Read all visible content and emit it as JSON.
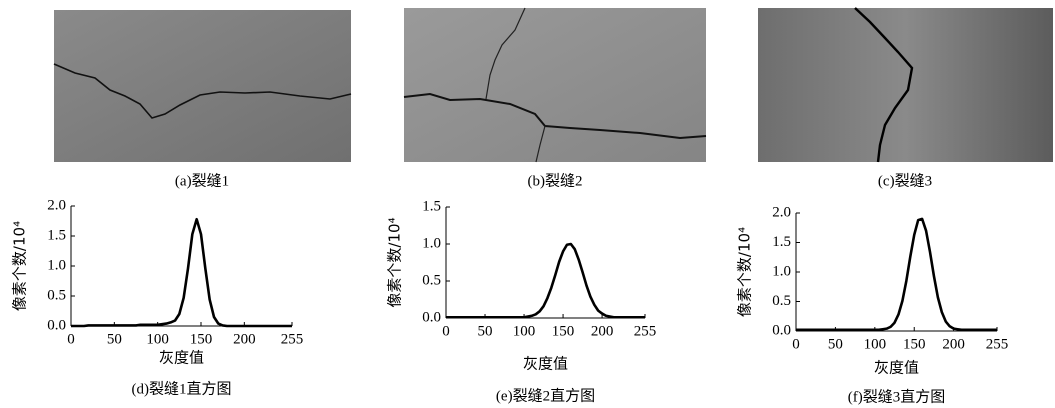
{
  "images": [
    {
      "caption": "(a)裂缝1"
    },
    {
      "caption": "(b)裂缝2"
    },
    {
      "caption": "(c)裂缝3"
    }
  ],
  "chart_data": [
    {
      "type": "line",
      "title": "(d)裂缝1直方图",
      "x_label": "灰度值",
      "y_label": "像素个数/10⁴",
      "color": "#000000",
      "x": [
        0,
        5,
        10,
        15,
        20,
        25,
        30,
        35,
        40,
        45,
        50,
        55,
        60,
        65,
        70,
        75,
        80,
        85,
        90,
        95,
        100,
        105,
        110,
        115,
        120,
        125,
        130,
        135,
        140,
        145,
        150,
        155,
        160,
        165,
        170,
        175,
        180,
        185,
        190,
        195,
        200,
        205,
        210,
        215,
        220,
        225,
        230,
        235,
        240,
        245,
        250,
        255
      ],
      "values": [
        0,
        0,
        0,
        0,
        0.01,
        0.01,
        0.01,
        0.01,
        0.01,
        0.01,
        0.01,
        0.01,
        0.01,
        0.01,
        0.01,
        0.01,
        0.02,
        0.02,
        0.02,
        0.02,
        0.02,
        0.03,
        0.04,
        0.06,
        0.09,
        0.2,
        0.47,
        0.96,
        1.53,
        1.78,
        1.53,
        0.96,
        0.44,
        0.15,
        0.04,
        0.01,
        0,
        0,
        0,
        0,
        0,
        0,
        0,
        0,
        0,
        0,
        0,
        0,
        0,
        0,
        0,
        0
      ],
      "xlim": [
        0,
        255
      ],
      "xticks": [
        0,
        50,
        100,
        150,
        200,
        255
      ],
      "ylim": [
        0,
        2
      ],
      "yticks": [
        {
          "value": 0,
          "label": "0.0"
        },
        0.5,
        {
          "value": 1,
          "label": "1.0"
        },
        1.5,
        {
          "value": 2,
          "label": "2.0"
        }
      ]
    },
    {
      "type": "line",
      "title": "(e)裂缝2直方图",
      "x_label": "灰度值",
      "y_label": "像素个数/10⁴",
      "color": "#000000",
      "x": [
        0,
        5,
        10,
        15,
        20,
        25,
        30,
        35,
        40,
        45,
        50,
        55,
        60,
        65,
        70,
        75,
        80,
        85,
        90,
        95,
        100,
        105,
        110,
        115,
        120,
        125,
        130,
        135,
        140,
        145,
        150,
        155,
        160,
        165,
        170,
        175,
        180,
        185,
        190,
        195,
        200,
        205,
        210,
        215,
        220,
        225,
        230,
        235,
        240,
        245,
        250,
        255
      ],
      "values": [
        0.01,
        0.01,
        0.01,
        0.01,
        0.01,
        0.01,
        0.01,
        0.01,
        0.01,
        0.01,
        0.01,
        0.01,
        0.01,
        0.01,
        0.01,
        0.01,
        0.01,
        0.01,
        0.01,
        0.01,
        0.01,
        0.02,
        0.03,
        0.05,
        0.09,
        0.16,
        0.27,
        0.41,
        0.58,
        0.76,
        0.9,
        0.99,
        1.0,
        0.93,
        0.79,
        0.62,
        0.44,
        0.29,
        0.18,
        0.1,
        0.06,
        0.03,
        0.02,
        0.01,
        0.01,
        0.01,
        0.01,
        0.01,
        0.01,
        0.01,
        0.01,
        0.01
      ],
      "xlim": [
        0,
        255
      ],
      "xticks": [
        0,
        50,
        100,
        150,
        200,
        255
      ],
      "ylim": [
        0,
        1.5
      ],
      "yticks": [
        {
          "value": 0,
          "label": "0.0"
        },
        0.5,
        {
          "value": 1,
          "label": "1.0"
        },
        1.5
      ]
    },
    {
      "type": "line",
      "title": "(f)裂缝3直方图",
      "x_label": "灰度值",
      "y_label": "像素个数/10⁴",
      "color": "#000000",
      "x": [
        0,
        5,
        10,
        15,
        20,
        25,
        30,
        35,
        40,
        45,
        50,
        55,
        60,
        65,
        70,
        75,
        80,
        85,
        90,
        95,
        100,
        105,
        110,
        115,
        120,
        125,
        130,
        135,
        140,
        145,
        150,
        155,
        160,
        165,
        170,
        175,
        180,
        185,
        190,
        195,
        200,
        205,
        210,
        215,
        220,
        225,
        230,
        235,
        240,
        245,
        250,
        255
      ],
      "values": [
        0.02,
        0.02,
        0.02,
        0.02,
        0.02,
        0.02,
        0.02,
        0.02,
        0.02,
        0.02,
        0.02,
        0.02,
        0.02,
        0.02,
        0.02,
        0.02,
        0.02,
        0.02,
        0.02,
        0.02,
        0.02,
        0.02,
        0.03,
        0.04,
        0.07,
        0.14,
        0.28,
        0.51,
        0.85,
        1.26,
        1.63,
        1.88,
        1.9,
        1.7,
        1.34,
        0.93,
        0.57,
        0.32,
        0.16,
        0.08,
        0.04,
        0.03,
        0.02,
        0.02,
        0.02,
        0.02,
        0.02,
        0.02,
        0.02,
        0.02,
        0.02,
        0.02
      ],
      "xlim": [
        0,
        255
      ],
      "xticks": [
        0,
        50,
        100,
        150,
        200,
        255
      ],
      "ylim": [
        0,
        2
      ],
      "yticks": [
        {
          "value": 0,
          "label": "0.0"
        },
        0.5,
        {
          "value": 1,
          "label": "1.0"
        },
        1.5,
        {
          "value": 2,
          "label": "2.0"
        }
      ]
    }
  ]
}
